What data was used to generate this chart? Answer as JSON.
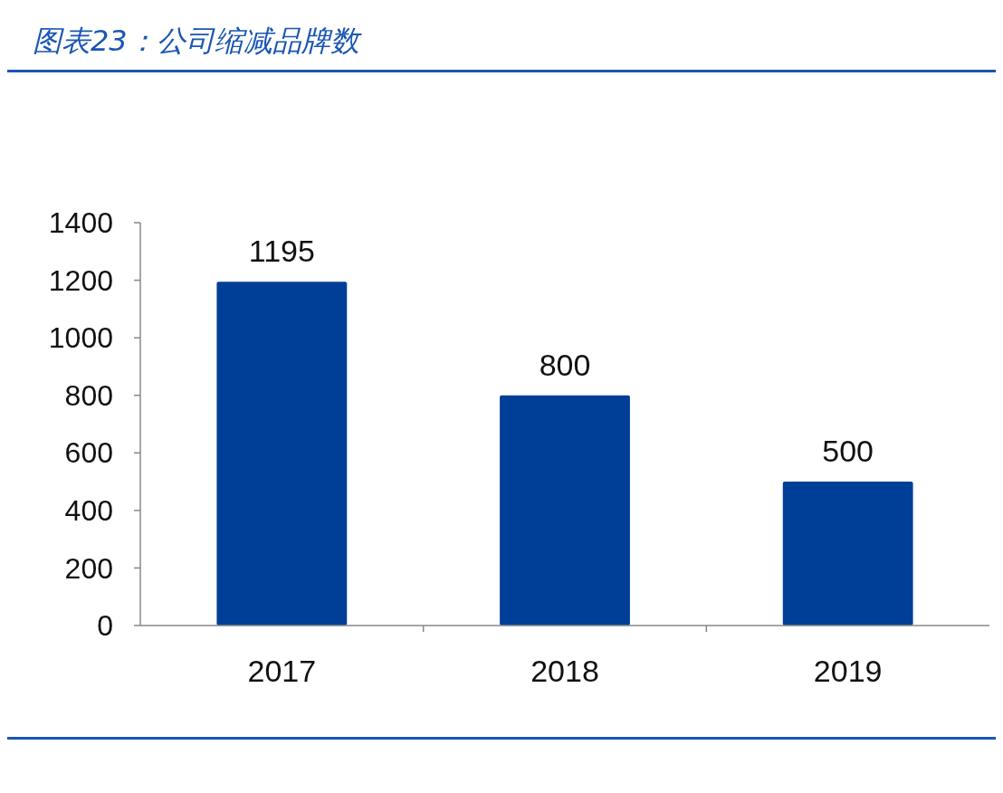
{
  "chart_data": {
    "type": "bar",
    "title": "图表23：公司缩减品牌数",
    "categories": [
      "2017",
      "2018",
      "2019"
    ],
    "values": [
      1195,
      800,
      500
    ],
    "color": "#003f98",
    "ylim": [
      0,
      1400
    ],
    "yticks": [
      0,
      200,
      400,
      600,
      800,
      1000,
      1200,
      1400
    ],
    "data_labels": true,
    "grid": false
  }
}
